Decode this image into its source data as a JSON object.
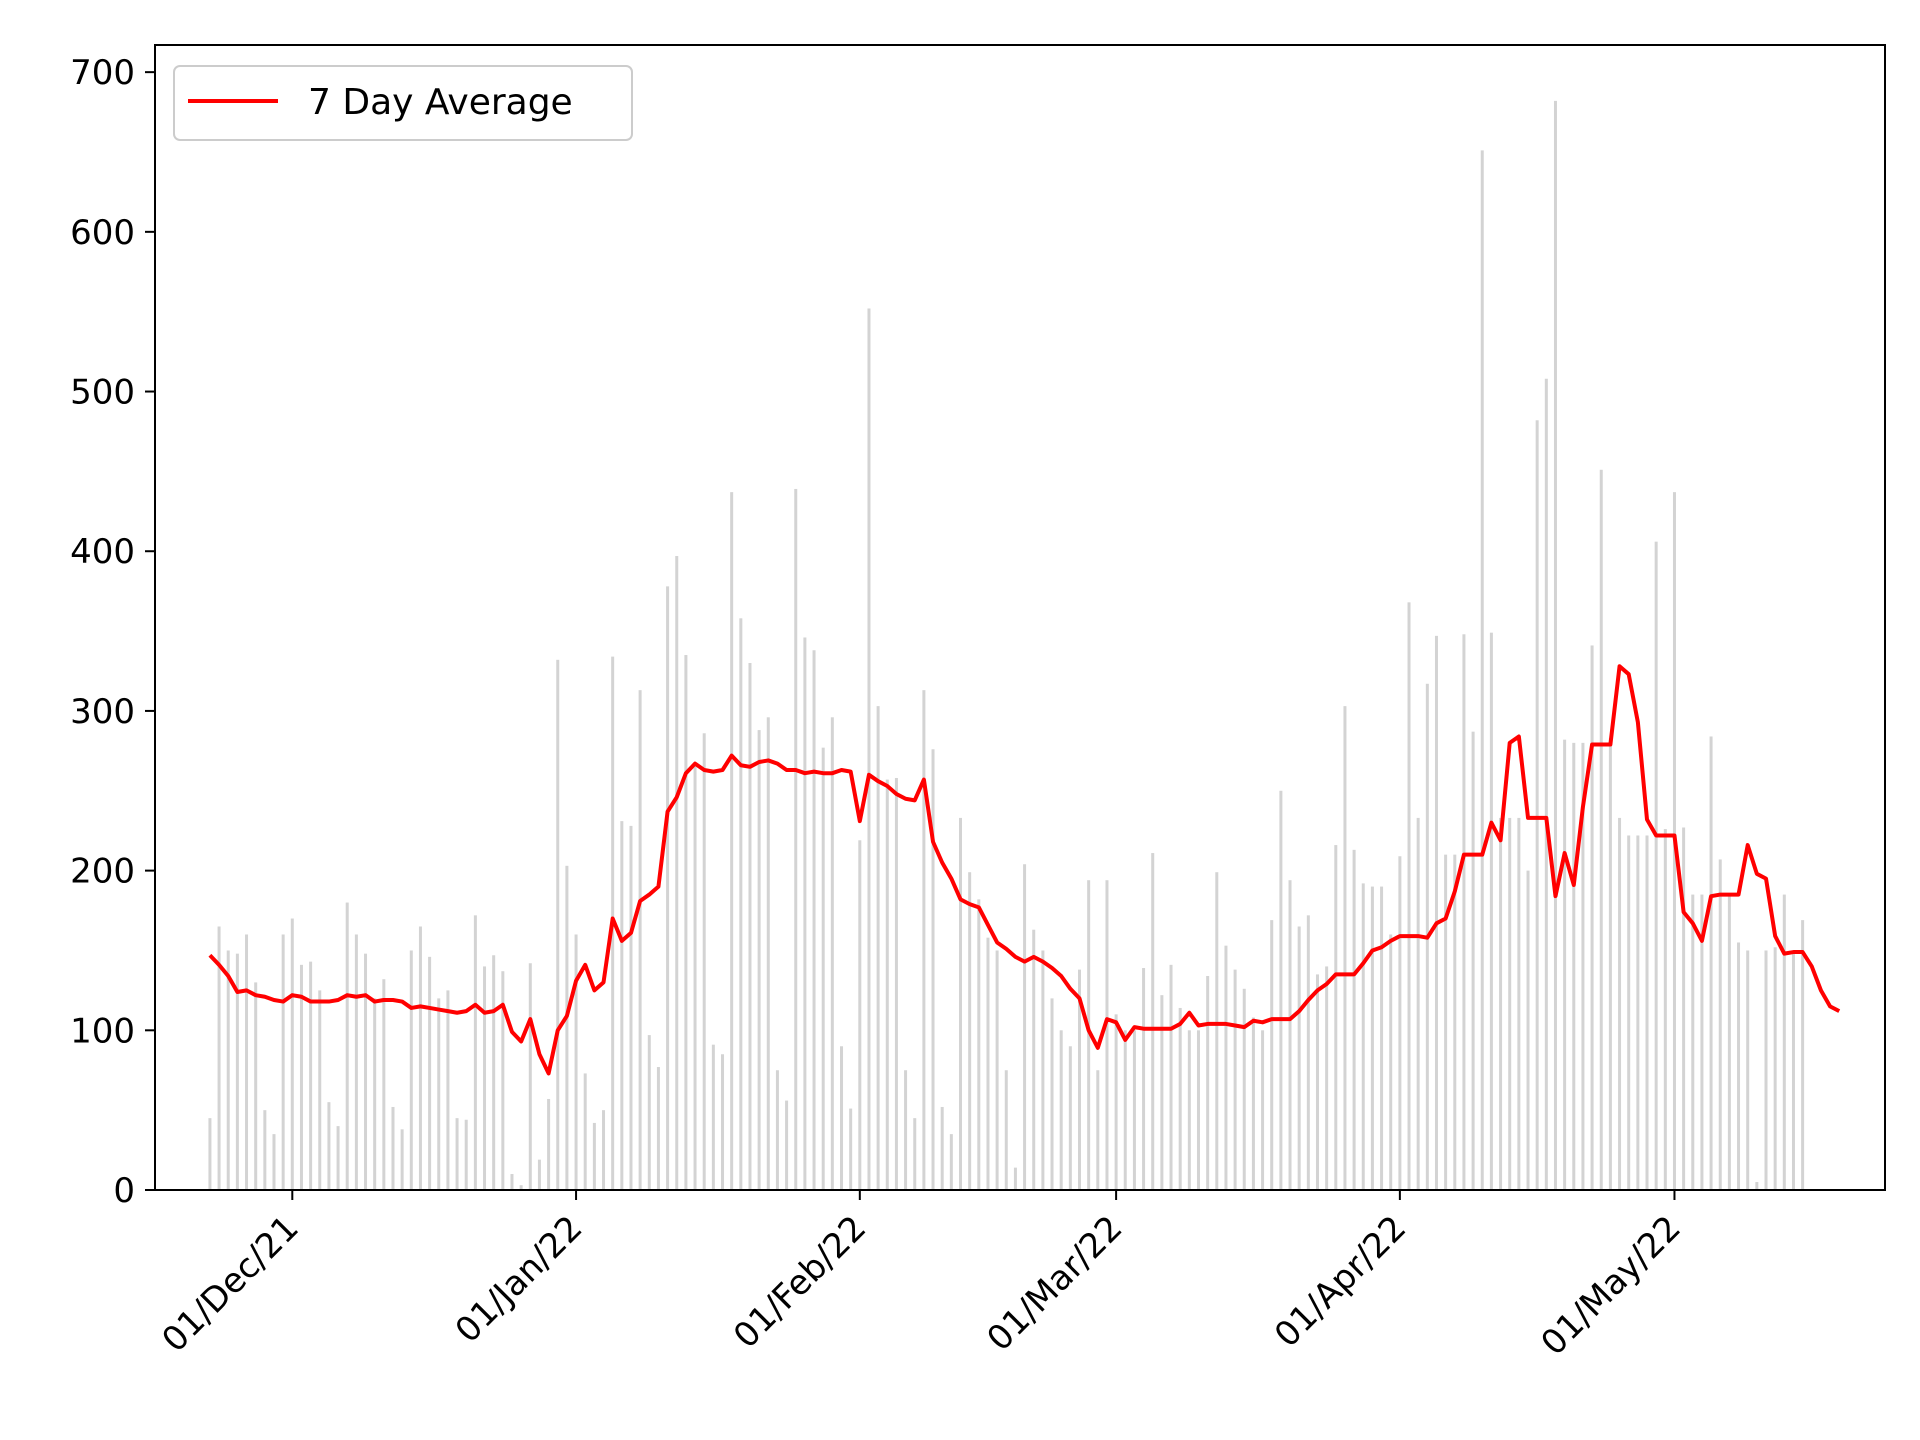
{
  "chart_data": {
    "type": "bar",
    "title": "",
    "xlabel": "",
    "ylabel": "",
    "x_start": "2021-11-22",
    "x_end": "2022-05-20",
    "xlim": [
      "2021-11-16",
      "2022-05-24"
    ],
    "ylim": [
      0,
      717
    ],
    "yticks": [
      0,
      100,
      200,
      300,
      400,
      500,
      600,
      700
    ],
    "xticks": [
      {
        "date": "2021-12-01",
        "label": "01/Dec/21"
      },
      {
        "date": "2022-01-01",
        "label": "01/Jan/22"
      },
      {
        "date": "2022-02-01",
        "label": "01/Feb/22"
      },
      {
        "date": "2022-03-01",
        "label": "01/Mar/22"
      },
      {
        "date": "2022-04-01",
        "label": "01/Apr/22"
      },
      {
        "date": "2022-05-01",
        "label": "01/May/22"
      }
    ],
    "grid": false,
    "legend": {
      "position": "upper-left",
      "entries": [
        {
          "label": "7 Day Average",
          "color": "#ff0000"
        }
      ]
    },
    "bar_color": "#d3d3d3",
    "line_color": "#ff0000",
    "series": [
      {
        "name": "daily",
        "kind": "bar",
        "values": [
          45,
          165,
          150,
          148,
          160,
          130,
          50,
          35,
          160,
          170,
          141,
          143,
          125,
          55,
          40,
          180,
          160,
          148,
          120,
          132,
          52,
          38,
          150,
          165,
          146,
          120,
          125,
          45,
          44,
          172,
          140,
          147,
          137,
          10,
          3,
          142,
          19,
          57,
          332,
          203,
          160,
          73,
          42,
          50,
          334,
          231,
          228,
          313,
          97,
          77,
          378,
          397,
          335,
          265,
          286,
          91,
          85,
          437,
          358,
          330,
          288,
          296,
          75,
          56,
          439,
          346,
          338,
          277,
          296,
          90,
          51,
          219,
          552,
          303,
          257,
          258,
          75,
          45,
          313,
          276,
          52,
          35,
          233,
          199,
          182,
          158,
          150,
          75,
          14,
          204,
          163,
          150,
          120,
          100,
          90,
          138,
          194,
          75,
          194,
          110,
          100,
          100,
          139,
          211,
          122,
          141,
          114,
          100,
          100,
          134,
          199,
          153,
          138,
          126,
          108,
          100,
          169,
          250,
          194,
          165,
          172,
          135,
          140,
          216,
          303,
          213,
          192,
          190,
          190,
          160,
          209,
          368,
          233,
          317,
          347,
          210,
          210,
          348,
          287,
          651,
          349,
          233,
          233,
          233,
          200,
          482,
          508,
          682,
          282,
          280,
          280,
          341,
          451,
          283,
          233,
          222,
          222,
          222,
          406,
          226,
          437,
          227,
          185,
          185,
          284,
          207,
          185,
          155,
          150,
          5,
          150,
          152,
          185,
          150,
          169
        ],
        "axis": "left"
      },
      {
        "name": "7 Day Average",
        "kind": "line",
        "values": [
          147,
          141,
          134,
          124,
          125,
          122,
          121,
          119,
          118,
          122,
          121,
          118,
          118,
          118,
          119,
          122,
          121,
          122,
          118,
          119,
          119,
          118,
          114,
          115,
          114,
          113,
          112,
          111,
          112,
          116,
          111,
          112,
          116,
          99,
          93,
          107,
          85,
          73,
          100,
          109,
          131,
          141,
          125,
          130,
          170,
          156,
          161,
          181,
          185,
          190,
          237,
          246,
          261,
          267,
          263,
          262,
          263,
          272,
          266,
          265,
          268,
          269,
          267,
          263,
          263,
          261,
          262,
          261,
          261,
          263,
          262,
          231,
          260,
          256,
          253,
          248,
          245,
          244,
          257,
          218,
          205,
          195,
          182,
          179,
          177,
          166,
          155,
          151,
          146,
          143,
          146,
          143,
          139,
          134,
          126,
          120,
          100,
          89,
          107,
          105,
          94,
          102,
          101,
          101,
          101,
          101,
          104,
          111,
          103,
          104,
          104,
          104,
          103,
          102,
          106,
          105,
          107,
          107,
          107,
          112,
          119,
          125,
          129,
          135,
          135,
          135,
          142,
          150,
          152,
          156,
          159,
          159,
          159,
          158,
          167,
          170,
          187,
          210,
          210,
          210,
          230,
          219,
          280,
          284,
          233,
          233,
          233,
          184,
          211,
          191,
          240,
          279,
          279,
          279,
          328,
          323,
          293,
          232,
          222,
          222,
          222,
          174,
          167,
          156,
          184,
          185,
          185,
          185,
          216,
          198,
          195,
          159,
          148,
          149,
          149,
          140,
          125,
          115,
          112
        ],
        "axis": "left"
      }
    ]
  }
}
